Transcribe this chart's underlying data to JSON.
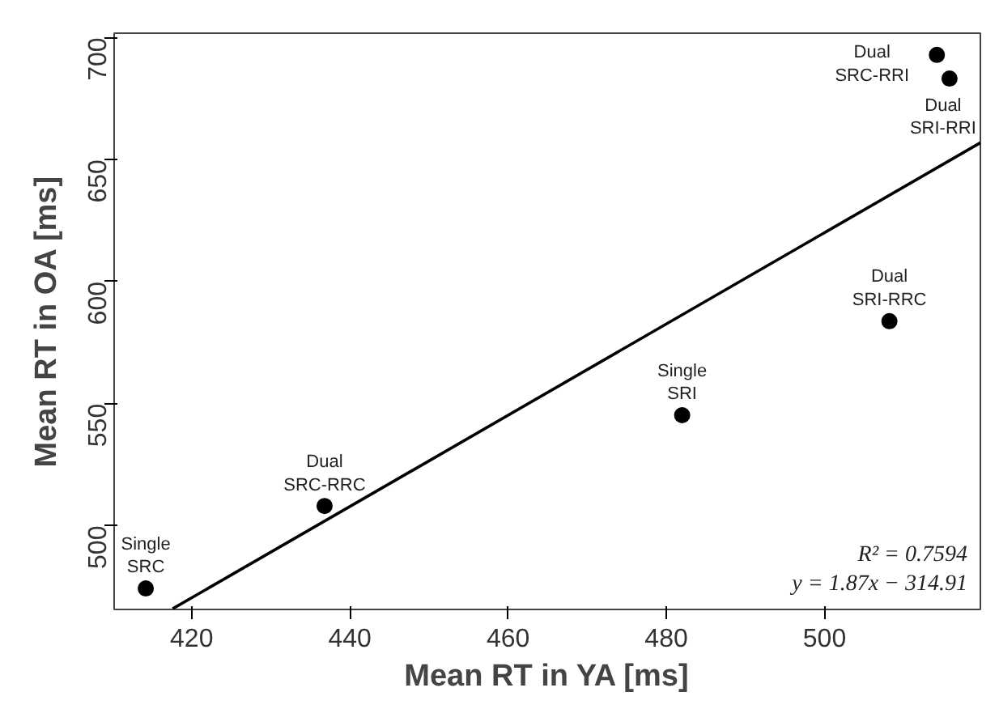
{
  "chart_data": {
    "type": "scatter",
    "xlabel": "Mean RT in YA [ms]",
    "ylabel": "Mean RT in OA [ms]",
    "xlim": [
      410.2,
      519.7
    ],
    "ylim": [
      465.7,
      701.8
    ],
    "xticks": [
      420,
      440,
      460,
      480,
      500
    ],
    "yticks": [
      500,
      550,
      600,
      650,
      700
    ],
    "grid": false,
    "series": [
      {
        "color": "#000000",
        "marker": "circle",
        "x": [
          414.2,
          436.8,
          482.0,
          508.2,
          514.2,
          515.8
        ],
        "values": [
          474.3,
          508.1,
          545.3,
          583.8,
          692.9,
          683.2
        ]
      },
      {
        "type": "line",
        "color": "#000000",
        "x": [
          417.6,
          519.7
        ],
        "values": [
          466.0,
          656.9
        ]
      }
    ],
    "annotations": [
      "Single\nSRC",
      "Dual\nSRC-RRC",
      "Single\nSRI",
      "Dual\nSRI-RRC",
      "Dual\nSRC-RRI",
      "Dual\nSRI-RRI",
      "R² = 0.7594",
      "y = 1.87x − 314.91"
    ]
  }
}
